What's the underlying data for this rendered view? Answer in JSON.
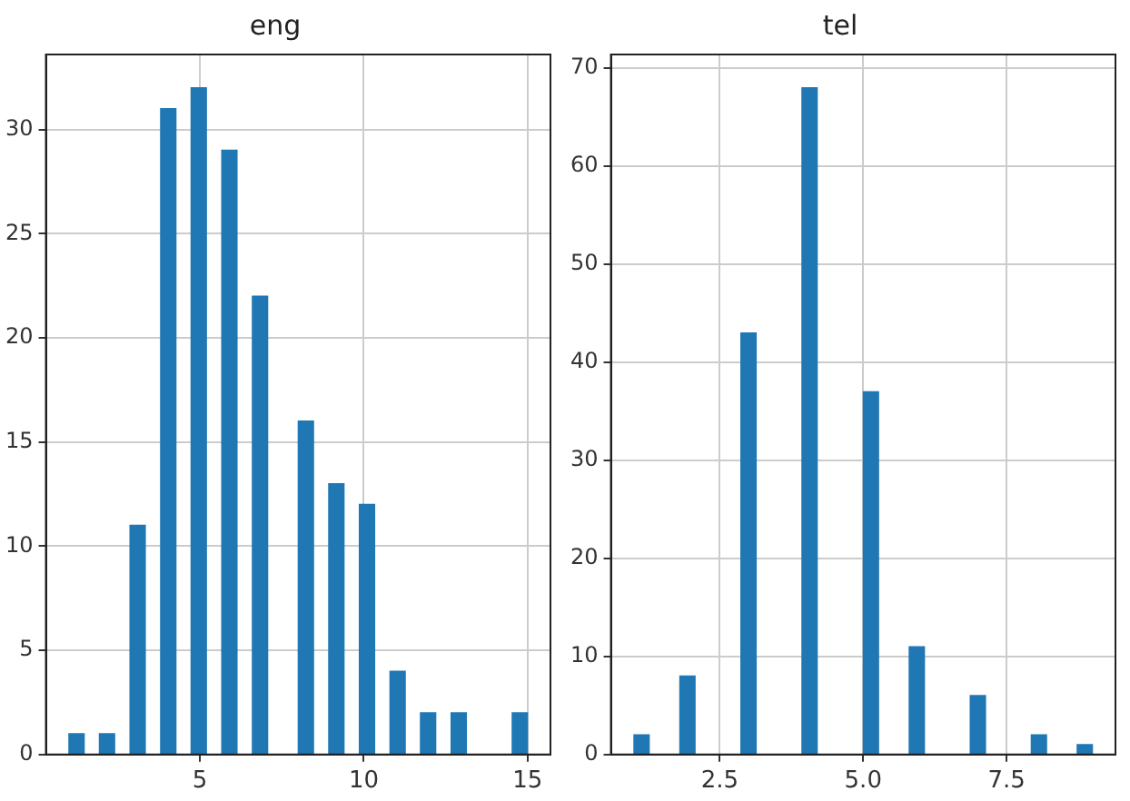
{
  "chart_data": [
    {
      "type": "histogram",
      "title": "eng",
      "color": "#1f77b4",
      "grid": true,
      "bins": [
        1,
        1.47,
        1.93,
        2.4,
        2.87,
        3.33,
        3.8,
        4.27,
        4.73,
        5.2,
        5.67,
        6.13,
        6.6,
        7.07,
        7.53,
        8,
        8.47,
        8.93,
        9.4,
        9.87,
        10.33,
        10.8,
        11.27,
        11.73,
        12.2,
        12.67,
        13.13,
        13.6,
        14.07,
        14.53,
        15
      ],
      "values": [
        1,
        0,
        1,
        0,
        11,
        0,
        31,
        0,
        32,
        0,
        29,
        0,
        22,
        0,
        0,
        16,
        0,
        13,
        0,
        12,
        0,
        4,
        0,
        2,
        0,
        2,
        0,
        0,
        0,
        2
      ],
      "xlim": [
        0.3,
        15.7
      ],
      "xticks": [
        5,
        10,
        15
      ],
      "ylim": [
        0,
        33.6
      ],
      "yticks": [
        0,
        5,
        10,
        15,
        20,
        25,
        30
      ]
    },
    {
      "type": "histogram",
      "title": "tel",
      "color": "#1f77b4",
      "grid": true,
      "bins": [
        1,
        1.27,
        1.53,
        1.8,
        2.07,
        2.33,
        2.6,
        2.87,
        3.13,
        3.4,
        3.67,
        3.93,
        4.2,
        4.47,
        4.73,
        5,
        5.27,
        5.53,
        5.8,
        6.07,
        6.33,
        6.6,
        6.87,
        7.13,
        7.4,
        7.67,
        7.93,
        8.2,
        8.47,
        8.73,
        9
      ],
      "values": [
        2,
        0,
        0,
        8,
        0,
        0,
        0,
        43,
        0,
        0,
        0,
        68,
        0,
        0,
        0,
        37,
        0,
        0,
        11,
        0,
        0,
        0,
        6,
        0,
        0,
        0,
        2,
        0,
        0,
        1
      ],
      "xlim": [
        0.6,
        9.4
      ],
      "xticks": [
        {
          "value": 2.5,
          "label": "2.5"
        },
        {
          "value": 5,
          "label": "5.0"
        },
        {
          "value": 7.5,
          "label": "7.5"
        }
      ],
      "ylim": [
        0,
        71.4
      ],
      "yticks": [
        0,
        10,
        20,
        30,
        40,
        50,
        60,
        70
      ]
    }
  ]
}
